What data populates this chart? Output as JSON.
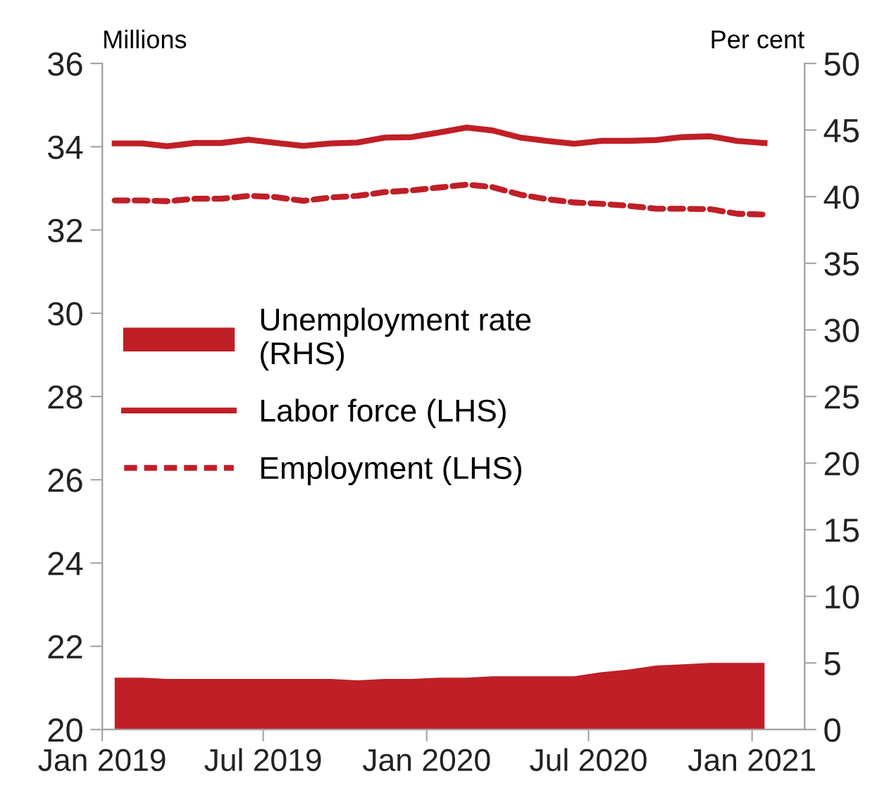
{
  "chart_data": {
    "type": "line",
    "ylabel": "Millions",
    "y2label": "Per cent",
    "x": [
      "2019-01-15",
      "2019-02-15",
      "2019-03-15",
      "2019-04-15",
      "2019-05-15",
      "2019-06-15",
      "2019-07-15",
      "2019-08-15",
      "2019-09-15",
      "2019-10-15",
      "2019-11-15",
      "2019-12-15",
      "2020-01-15",
      "2020-02-15",
      "2020-03-15",
      "2020-04-15",
      "2020-05-15",
      "2020-06-15",
      "2020-07-15",
      "2020-08-15",
      "2020-09-15",
      "2020-10-15",
      "2020-11-15",
      "2020-12-15",
      "2021-01-15"
    ],
    "series": [
      {
        "name": "Unemployment rate\n(RHS)",
        "type": "area",
        "axis": "y2",
        "color": "#c01f27",
        "values": [
          3.9,
          3.9,
          3.8,
          3.8,
          3.8,
          3.8,
          3.8,
          3.8,
          3.8,
          3.7,
          3.8,
          3.8,
          3.9,
          3.9,
          4.0,
          4.0,
          4.0,
          4.0,
          4.3,
          4.5,
          4.8,
          4.9,
          5.0,
          5.0,
          5.0
        ]
      },
      {
        "name": "Labor force (LHS)",
        "line_style": "solid",
        "color": "#c01f27",
        "values": [
          34.08,
          34.08,
          34.01,
          34.09,
          34.09,
          34.17,
          34.09,
          34.02,
          34.08,
          34.1,
          34.22,
          34.23,
          34.34,
          34.46,
          34.39,
          34.22,
          34.14,
          34.07,
          34.14,
          34.14,
          34.16,
          34.23,
          34.25,
          34.14,
          34.09
        ]
      },
      {
        "name": "Employment (LHS)",
        "line_style": "dashed",
        "color": "#c01f27",
        "values": [
          32.71,
          32.71,
          32.69,
          32.75,
          32.75,
          32.82,
          32.79,
          32.7,
          32.78,
          32.82,
          32.91,
          32.95,
          33.02,
          33.09,
          33.03,
          32.85,
          32.74,
          32.66,
          32.63,
          32.58,
          32.51,
          32.51,
          32.5,
          32.39,
          32.37
        ]
      }
    ],
    "xlim": [
      "2019-01-01",
      "2021-03-01"
    ],
    "xticks": [
      {
        "value": "2019-01-01",
        "label": "Jan 2019"
      },
      {
        "value": "2019-07-01",
        "label": "Jul 2019"
      },
      {
        "value": "2020-01-01",
        "label": "Jan 2020"
      },
      {
        "value": "2020-07-01",
        "label": "Jul 2020"
      },
      {
        "value": "2021-01-01",
        "label": "Jan 2021"
      }
    ],
    "ylim": [
      20,
      36
    ],
    "yticks": [
      20,
      22,
      24,
      26,
      28,
      30,
      32,
      34,
      36
    ],
    "y2lim": [
      0,
      50
    ],
    "y2ticks": [
      0,
      5,
      10,
      15,
      20,
      25,
      30,
      35,
      40,
      45,
      50
    ],
    "grid": false,
    "legend": "left"
  }
}
